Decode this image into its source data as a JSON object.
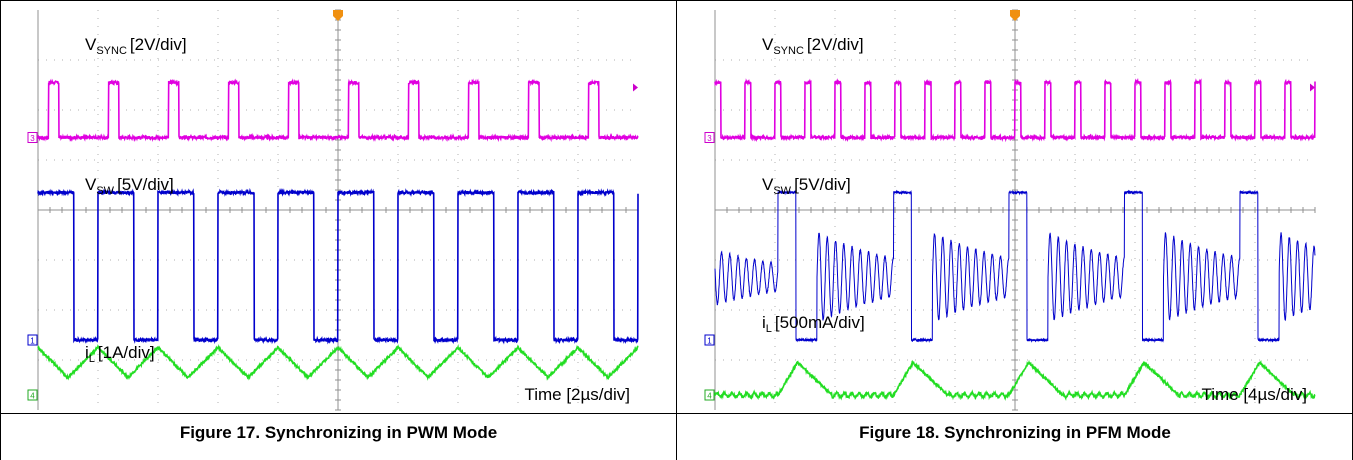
{
  "figures": [
    {
      "caption": "Figure 17. Synchronizing in PWM Mode",
      "labels": {
        "sync_main": "V",
        "sync_sub": "SYNC",
        "sync_scale": "[2V/div]",
        "sw_main": "V",
        "sw_sub": "SW",
        "sw_scale": "[5V/div]",
        "il_main": "i",
        "il_sub": "L",
        "il_scale": "[1A/div]",
        "time": "Time  [2µs/div]"
      }
    },
    {
      "caption": "Figure 18. Synchronizing in PFM Mode",
      "labels": {
        "sync_main": "V",
        "sync_sub": "SYNC",
        "sync_scale": "[2V/div]",
        "sw_main": "V",
        "sw_sub": "SW",
        "sw_scale": "[5V/div]",
        "il_main": "i",
        "il_sub": "L",
        "il_scale": "[500mA/div]",
        "time": "Time  [4µs/div]"
      }
    }
  ],
  "chart_data": [
    {
      "type": "line",
      "x_unit": "µs",
      "xlim": [
        0,
        20
      ],
      "divisions": [
        10,
        8
      ],
      "channel_markers": [
        "3",
        "1",
        "4"
      ],
      "series": [
        {
          "name": "VSYNC",
          "color": "#e000e0",
          "kind": "pulse",
          "period": 2.0,
          "high_duration": 0.35,
          "first_rise": 0.35,
          "high_div": 6.55,
          "low_div": 5.45
        },
        {
          "name": "VSW",
          "color": "#0000cc",
          "kind": "pulse",
          "period": 2.0,
          "high_duration": 1.2,
          "first_rise": 0.0,
          "high_div": 4.35,
          "low_div": 1.4
        },
        {
          "name": "iL",
          "color": "#22dd22",
          "kind": "triangle",
          "period": 2.0,
          "peak_offset": 0.0,
          "center_div": 0.95,
          "amplitude_div": 0.3
        }
      ]
    },
    {
      "type": "line",
      "x_unit": "µs",
      "xlim": [
        0,
        40
      ],
      "divisions": [
        10,
        8
      ],
      "channel_markers": [
        "3",
        "1",
        "4"
      ],
      "series": [
        {
          "name": "VSYNC",
          "color": "#e000e0",
          "kind": "pulse",
          "period": 2.0,
          "high_duration": 0.4,
          "first_rise": 0.0,
          "high_div": 6.55,
          "low_div": 5.45
        },
        {
          "name": "VSW",
          "color": "#0000cc",
          "kind": "pfm",
          "bursts": [
            4.2,
            11.9,
            19.6,
            27.3,
            35.0
          ],
          "high_duration": 1.2,
          "high_div": 4.35,
          "low_div": 1.4,
          "ring_center_div": 2.65,
          "ring_amp_div": 0.9,
          "ring_period": 0.55
        },
        {
          "name": "iL",
          "color": "#22dd22",
          "kind": "pfm_current",
          "bursts": [
            4.2,
            11.9,
            19.6,
            27.3,
            35.0
          ],
          "base_div": 0.3,
          "peak_div": 0.95,
          "rise": 1.3,
          "fall": 2.3
        }
      ]
    }
  ]
}
